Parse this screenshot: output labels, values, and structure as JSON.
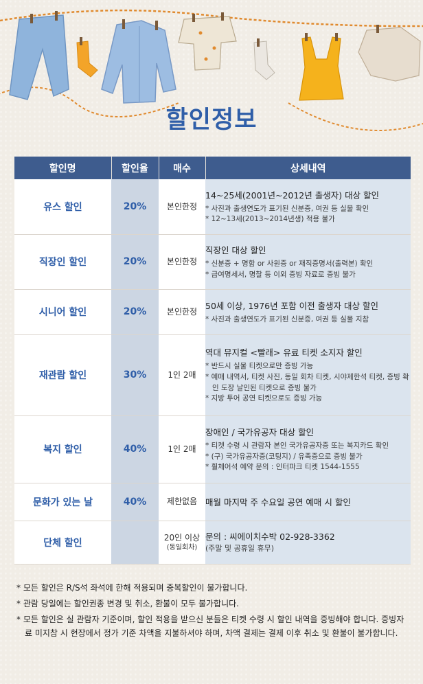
{
  "title": "할인정보",
  "table": {
    "headers": [
      "할인명",
      "할인율",
      "매수",
      "상세내역"
    ],
    "rows": [
      {
        "name": "유스 할인",
        "rate": "20%",
        "qty": "본인한정",
        "qty_sub": "",
        "detail": "14~25세(2001년~2012년 출생자) 대상 할인",
        "notes": [
          "* 사진과 출생연도가 표기된 신분증, 여권 등 실물 확인",
          "* 12~13세(2013~2014년생) 적용 불가"
        ]
      },
      {
        "name": "직장인 할인",
        "rate": "20%",
        "qty": "본인한정",
        "qty_sub": "",
        "detail": "직장인 대상 할인",
        "notes": [
          "* 신분증 + 명함 or 사원증 or 재직증명서(출력본) 확인",
          "* 급여명세서, 명찰 등 이외 증빙 자료로 증빙 불가"
        ]
      },
      {
        "name": "시니어 할인",
        "rate": "20%",
        "qty": "본인한정",
        "qty_sub": "",
        "detail": "50세 이상, 1976년 포함 이전 출생자 대상 할인",
        "notes": [
          "* 사진과 출생연도가 표기된 신분증, 여권 등 실물 지참"
        ]
      },
      {
        "name": "재관람 할인",
        "rate": "30%",
        "qty": "1인 2매",
        "qty_sub": "",
        "detail": "역대 뮤지컬 <빨래> 유료 티켓 소지자 할인",
        "notes": [
          "* 반드시 실물 티켓으로만 증빙 가능",
          "* 예매 내역서, 티켓 사진, 동일 회차 티켓, 시야제한석 티켓, 증빙 확인 도장 날인된 티켓으로 증빙 불가",
          "* 지방 투어 공연 티켓으로도 증빙 가능"
        ]
      },
      {
        "name": "복지 할인",
        "rate": "40%",
        "qty": "1인 2매",
        "qty_sub": "",
        "detail": "장애인 / 국가유공자 대상 할인",
        "notes": [
          "* 티켓 수령 시 관람자 본인 국가유공자증 또는 복지카드 확인",
          "* (구) 국가유공자증(코팅지) / 유족증으로 증빙 불가",
          "* 휠체어석 예약 문의 : 인터파크 티켓 1544-1555"
        ]
      },
      {
        "name": "문화가 있는 날",
        "rate": "40%",
        "qty": "제한없음",
        "qty_sub": "",
        "detail": "매월 마지막 주 수요일 공연 예매 시 할인",
        "notes": []
      },
      {
        "name": "단체 할인",
        "rate": "",
        "qty": "20인 이상",
        "qty_sub": "(동일회차)",
        "detail": "문의 : 씨에이치수박 02-928-3362",
        "notes": [
          "(주말 및 공휴일 휴무)"
        ]
      }
    ]
  },
  "footnotes": [
    "* 모든 할인은 R/S석 좌석에 한해 적용되며 중복할인이 불가합니다.",
    "* 관람 당일에는 할인권종 변경 및 취소, 환불이 모두 불가합니다.",
    "* 모든 할인은 실 관람자 기준이며, 할인 적용을 받으신 분들은 티켓 수령 시 할인 내역을 증빙해야 합니다. 증빙자료 미지참 시 현장에서 정가 기준 차액을 지불하셔야 하며, 차액 결제는 결제 이후 취소 및 환불이 불가합니다."
  ],
  "colors": {
    "header_bg": "#3e5c8e",
    "accent": "#2f5ea8",
    "rate_bg": "#ccd6e3",
    "detail_bg": "#dbe4ee"
  }
}
